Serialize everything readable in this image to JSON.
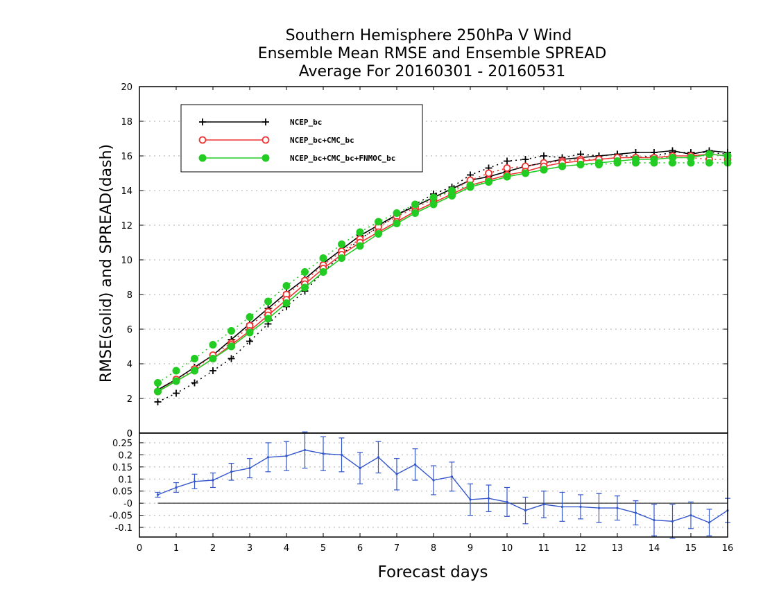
{
  "chart_data": [
    {
      "type": "line",
      "title": [
        "Southern Hemisphere 250hPa V Wind",
        "Ensemble Mean RMSE and Ensemble SPREAD",
        "Average For 20160301 - 20160531"
      ],
      "xlabel": "Forecast days",
      "ylabel": "RMSE(solid) and SPREAD(dash)",
      "xlim": [
        0,
        16
      ],
      "ylim": [
        0,
        20
      ],
      "yticks": [
        0,
        2,
        4,
        6,
        8,
        10,
        12,
        14,
        16,
        18,
        20
      ],
      "grid": true,
      "legend_position": "top-left",
      "x": [
        0.5,
        1,
        1.5,
        2,
        2.5,
        3,
        3.5,
        4,
        4.5,
        5,
        5.5,
        6,
        6.5,
        7,
        7.5,
        8,
        8.5,
        9,
        9.5,
        10,
        10.5,
        11,
        11.5,
        12,
        12.5,
        13,
        13.5,
        14,
        14.5,
        15,
        15.5,
        16
      ],
      "series": [
        {
          "name": "NCEP_bc",
          "color": "#000000",
          "marker": "plus",
          "rmse": [
            2.5,
            3.1,
            3.8,
            4.5,
            5.4,
            6.3,
            7.2,
            8.1,
            8.9,
            9.8,
            10.6,
            11.4,
            12.0,
            12.6,
            13.1,
            13.6,
            14.1,
            14.6,
            14.8,
            15.1,
            15.4,
            15.6,
            15.8,
            15.9,
            16.0,
            16.1,
            16.2,
            16.2,
            16.3,
            16.1,
            16.3,
            16.2
          ],
          "spread": [
            1.8,
            2.3,
            2.9,
            3.6,
            4.3,
            5.3,
            6.3,
            7.3,
            8.2,
            9.3,
            10.3,
            11.2,
            11.9,
            12.6,
            13.2,
            13.8,
            14.2,
            14.9,
            15.3,
            15.7,
            15.8,
            16.0,
            15.9,
            16.1,
            16.0,
            16.1,
            15.9,
            16.0,
            16.2,
            16.2,
            16.2,
            16.1
          ]
        },
        {
          "name": "NCEP_bc+CMC_bc",
          "color": "#ee3333",
          "marker": "circle-open",
          "rmse": [
            2.4,
            3.0,
            3.6,
            4.3,
            5.1,
            5.9,
            6.8,
            7.7,
            8.6,
            9.5,
            10.3,
            11.0,
            11.6,
            12.2,
            12.8,
            13.3,
            13.8,
            14.3,
            14.6,
            14.9,
            15.1,
            15.4,
            15.6,
            15.7,
            15.8,
            15.9,
            15.9,
            15.9,
            16.0,
            16.0,
            16.1,
            16.0
          ],
          "spread": [
            2.4,
            3.1,
            3.7,
            4.5,
            5.2,
            6.2,
            7.0,
            8.0,
            8.8,
            9.7,
            10.5,
            11.2,
            11.9,
            12.5,
            13.0,
            13.5,
            14.0,
            14.6,
            15.0,
            15.3,
            15.4,
            15.6,
            15.7,
            15.8,
            15.8,
            15.9,
            15.9,
            15.9,
            15.9,
            15.9,
            15.8,
            15.8
          ]
        },
        {
          "name": "NCEP_bc+CMC_bc+FNMOC_bc",
          "color": "#22cc22",
          "marker": "circle-filled",
          "rmse": [
            2.4,
            3.0,
            3.6,
            4.3,
            5.0,
            5.8,
            6.6,
            7.5,
            8.4,
            9.3,
            10.1,
            10.8,
            11.5,
            12.1,
            12.7,
            13.2,
            13.7,
            14.2,
            14.5,
            14.8,
            15.0,
            15.2,
            15.4,
            15.5,
            15.6,
            15.7,
            15.8,
            15.8,
            15.9,
            15.9,
            16.1,
            16.0
          ],
          "spread": [
            2.9,
            3.6,
            4.3,
            5.1,
            5.9,
            6.7,
            7.6,
            8.5,
            9.3,
            10.1,
            10.9,
            11.6,
            12.2,
            12.7,
            13.2,
            13.6,
            14.0,
            14.3,
            14.5,
            14.8,
            15.0,
            15.2,
            15.4,
            15.5,
            15.5,
            15.6,
            15.6,
            15.6,
            15.6,
            15.6,
            15.6,
            15.6
          ]
        }
      ]
    },
    {
      "type": "line",
      "xlabel": "Forecast days",
      "xlim": [
        0,
        16
      ],
      "ylim": [
        -0.14,
        0.29
      ],
      "yticks": [
        -0.1,
        -0.05,
        0,
        0.05,
        0.1,
        0.15,
        0.2,
        0.25
      ],
      "ytick_labels": [
        "-0.1",
        "-0.05",
        "-0",
        "0.05",
        "0.1",
        "0.15",
        "0.2",
        "0.25"
      ],
      "top_label": "0",
      "xticks": [
        0,
        1,
        2,
        3,
        4,
        5,
        6,
        7,
        8,
        9,
        10,
        11,
        12,
        13,
        14,
        15,
        16
      ],
      "grid": true,
      "x": [
        0.5,
        1,
        1.5,
        2,
        2.5,
        3,
        3.5,
        4,
        4.5,
        5,
        5.5,
        6,
        6.5,
        7,
        7.5,
        8,
        8.5,
        9,
        9.5,
        10,
        10.5,
        11,
        11.5,
        12,
        12.5,
        13,
        13.5,
        14,
        14.5,
        15,
        15.5,
        16
      ],
      "series": [
        {
          "color": "#3355cc",
          "values": [
            0.035,
            0.065,
            0.09,
            0.095,
            0.13,
            0.145,
            0.19,
            0.195,
            0.22,
            0.205,
            0.2,
            0.145,
            0.19,
            0.12,
            0.16,
            0.095,
            0.11,
            0.015,
            0.02,
            0.005,
            -0.03,
            -0.005,
            -0.015,
            -0.015,
            -0.02,
            -0.02,
            -0.04,
            -0.07,
            -0.075,
            -0.05,
            -0.08,
            -0.03
          ],
          "error": [
            0.01,
            0.02,
            0.03,
            0.03,
            0.035,
            0.04,
            0.06,
            0.06,
            0.075,
            0.07,
            0.07,
            0.065,
            0.065,
            0.065,
            0.065,
            0.06,
            0.06,
            0.065,
            0.055,
            0.06,
            0.055,
            0.055,
            0.06,
            0.05,
            0.06,
            0.05,
            0.05,
            0.065,
            0.07,
            0.055,
            0.055,
            0.05
          ]
        }
      ]
    }
  ]
}
